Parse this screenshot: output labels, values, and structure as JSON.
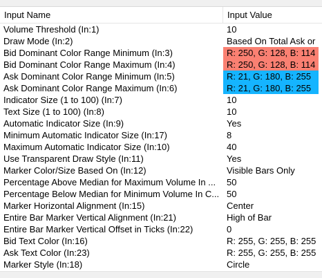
{
  "grid": {
    "header": {
      "name": "Input Name",
      "value": "Input Value"
    },
    "rows": [
      {
        "name": "Volume Threshold  (In:1)",
        "value": "10"
      },
      {
        "name": "Draw Mode  (In:2)",
        "value": "Based On Total Ask or"
      },
      {
        "name": "Bid Dominant Color Range Minimum  (In:3)",
        "value": "R: 250, G: 128, B: 114",
        "color": "#fa8072"
      },
      {
        "name": "Bid Dominant Color Range Maximum  (In:4)",
        "value": "R: 250, G: 128, B: 114",
        "color": "#fa8072"
      },
      {
        "name": "Ask Dominant Color Range Minimum  (In:5)",
        "value": "R: 21, G: 180, B: 255",
        "color": "#15b4ff"
      },
      {
        "name": "Ask Dominant Color Range Maximum  (In:6)",
        "value": "R: 21, G: 180, B: 255",
        "color": "#15b4ff"
      },
      {
        "name": "Indicator Size (1 to 100)  (In:7)",
        "value": "10"
      },
      {
        "name": "Text Size (1 to 100)  (In:8)",
        "value": "10"
      },
      {
        "name": "Automatic Indicator Size  (In:9)",
        "value": "Yes"
      },
      {
        "name": "Minimum Automatic Indicator Size  (In:17)",
        "value": "8"
      },
      {
        "name": "Maximum Automatic Indicator Size  (In:10)",
        "value": "40"
      },
      {
        "name": "Use Transparent Draw Style  (In:11)",
        "value": "Yes"
      },
      {
        "name": "Marker Color/Size Based On  (In:12)",
        "value": "Visible Bars Only"
      },
      {
        "name": "Percentage Above Median for Maximum Volume In ...",
        "value": "50"
      },
      {
        "name": "Percentage Below Median for Minimum Volume In C...",
        "value": "50"
      },
      {
        "name": "Marker Horizontal Alignment  (In:15)",
        "value": "Center"
      },
      {
        "name": "Entire Bar Marker Vertical Alignment  (In:21)",
        "value": "High of Bar"
      },
      {
        "name": "Entire Bar Marker Vertical Offset in Ticks  (In:22)",
        "value": "0"
      },
      {
        "name": "Bid Text Color  (In:16)",
        "value": "R: 255, G: 255, B: 255"
      },
      {
        "name": "Ask Text Color  (In:23)",
        "value": "R: 255, G: 255, B: 255"
      },
      {
        "name": "Marker Style  (In:18)",
        "value": "Circle"
      }
    ]
  }
}
